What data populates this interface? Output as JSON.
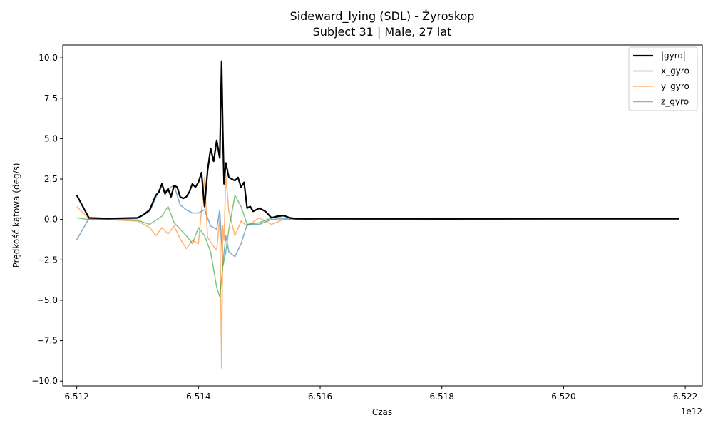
{
  "chart_data": {
    "type": "line",
    "title": "Sideward_lying (SDL) - Żyroskop",
    "subtitle": "Subject 31 | Male, 27 lat",
    "xlabel": "Czas",
    "ylabel": "Prędkość kątowa (deg/s)",
    "x_offset_label": "1e12",
    "x_unit_scale": 1000000000000,
    "xlim": [
      6.51177,
      6.52228
    ],
    "ylim": [
      -10.3,
      10.8
    ],
    "x_ticks": [
      6.512,
      6.514,
      6.516,
      6.518,
      6.52,
      6.522
    ],
    "x_tick_labels": [
      "6.512",
      "6.514",
      "6.516",
      "6.518",
      "6.520",
      "6.522"
    ],
    "y_ticks": [
      -10,
      -7.5,
      -5,
      -2.5,
      0,
      2.5,
      5,
      7.5,
      10
    ],
    "y_tick_labels": [
      "−10.0",
      "−7.5",
      "−5.0",
      "−2.5",
      "0.0",
      "2.5",
      "5.0",
      "7.5",
      "10.0"
    ],
    "grid": false,
    "legend_position": "top-right",
    "series": [
      {
        "name": "|gyro|",
        "color": "#000000",
        "x": [
          6.512,
          6.5122,
          6.5125,
          6.513,
          6.5131,
          6.5132,
          6.5133,
          6.51335,
          6.5134,
          6.51345,
          6.5135,
          6.51355,
          6.5136,
          6.51365,
          6.5137,
          6.51375,
          6.5138,
          6.51385,
          6.5139,
          6.51395,
          6.514,
          6.51405,
          6.5141,
          6.51415,
          6.5142,
          6.51425,
          6.5143,
          6.51435,
          6.51438,
          6.5144,
          6.51442,
          6.51445,
          6.5145,
          6.51455,
          6.5146,
          6.51465,
          6.5147,
          6.51475,
          6.5148,
          6.51485,
          6.5149,
          6.515,
          6.5151,
          6.5152,
          6.5153,
          6.5154,
          6.5155,
          6.5156,
          6.5158,
          6.516,
          6.518,
          6.52,
          6.5219
        ],
        "y": [
          1.5,
          0.1,
          0.06,
          0.1,
          0.3,
          0.6,
          1.5,
          1.7,
          2.2,
          1.6,
          1.9,
          1.4,
          2.1,
          2.0,
          1.4,
          1.3,
          1.4,
          1.7,
          2.2,
          2.0,
          2.3,
          2.9,
          0.8,
          3.0,
          4.4,
          3.6,
          4.9,
          3.8,
          9.8,
          5.5,
          2.2,
          3.5,
          2.6,
          2.5,
          2.4,
          2.6,
          2.0,
          2.3,
          0.7,
          0.8,
          0.5,
          0.7,
          0.5,
          0.1,
          0.2,
          0.25,
          0.1,
          0.05,
          0.04,
          0.05,
          0.04,
          0.05,
          0.05
        ]
      },
      {
        "name": "x_gyro",
        "color": "#1f77b4",
        "x": [
          6.512,
          6.5122,
          6.5125,
          6.513,
          6.5132,
          6.5134,
          6.51345,
          6.5135,
          6.5136,
          6.5137,
          6.5138,
          6.5139,
          6.514,
          6.5141,
          6.5142,
          6.5143,
          6.51435,
          6.5144,
          6.51445,
          6.5145,
          6.5146,
          6.5147,
          6.5148,
          6.515,
          6.5152,
          6.5154,
          6.5156,
          6.5158,
          6.516,
          6.518,
          6.52,
          6.5219
        ],
        "y": [
          -1.25,
          0.05,
          0.0,
          0.05,
          0.5,
          2.2,
          1.5,
          1.9,
          2.1,
          0.9,
          0.6,
          0.4,
          0.4,
          0.6,
          -0.4,
          -0.6,
          0.6,
          -2.8,
          -1.0,
          -2.0,
          -2.3,
          -1.5,
          -0.3,
          -0.3,
          0.0,
          0.05,
          0.0,
          0.0,
          0.0,
          0.0,
          0.0,
          0.0
        ]
      },
      {
        "name": "y_gyro",
        "color": "#ff7f0e",
        "x": [
          6.512,
          6.5122,
          6.5125,
          6.513,
          6.5132,
          6.5133,
          6.5134,
          6.5135,
          6.5136,
          6.5137,
          6.5138,
          6.5139,
          6.514,
          6.5141,
          6.51415,
          6.5142,
          6.5143,
          6.51435,
          6.51438,
          6.5144,
          6.51442,
          6.51445,
          6.5145,
          6.5146,
          6.5147,
          6.5148,
          6.515,
          6.5152,
          6.5154,
          6.5156,
          6.516,
          6.518,
          6.52,
          6.5219
        ],
        "y": [
          0.8,
          0.05,
          0.0,
          -0.1,
          -0.5,
          -1.0,
          -0.5,
          -0.9,
          -0.4,
          -1.2,
          -1.8,
          -1.3,
          -1.5,
          2.6,
          -1.1,
          -1.4,
          -1.9,
          0.2,
          -9.2,
          -0.4,
          -1.3,
          2.7,
          0.5,
          -1.0,
          -0.1,
          -0.4,
          0.1,
          -0.3,
          0.0,
          0.0,
          0.0,
          0.0,
          0.0,
          0.0
        ]
      },
      {
        "name": "z_gyro",
        "color": "#2ca02c",
        "x": [
          6.512,
          6.5122,
          6.5125,
          6.513,
          6.5132,
          6.5134,
          6.5135,
          6.5136,
          6.5137,
          6.5138,
          6.5139,
          6.514,
          6.5141,
          6.5142,
          6.5143,
          6.51435,
          6.5144,
          6.51445,
          6.5145,
          6.5146,
          6.5147,
          6.5148,
          6.515,
          6.5152,
          6.5154,
          6.5156,
          6.516,
          6.518,
          6.52,
          6.5219
        ],
        "y": [
          0.1,
          0.0,
          0.0,
          -0.05,
          -0.3,
          0.2,
          0.8,
          -0.2,
          -0.6,
          -1.0,
          -1.5,
          -0.5,
          -1.0,
          -2.0,
          -4.2,
          -4.8,
          -2.9,
          -2.0,
          -0.6,
          1.5,
          0.8,
          -0.3,
          -0.2,
          0.1,
          0.2,
          0.05,
          0.0,
          0.0,
          0.0,
          0.0
        ]
      }
    ]
  }
}
